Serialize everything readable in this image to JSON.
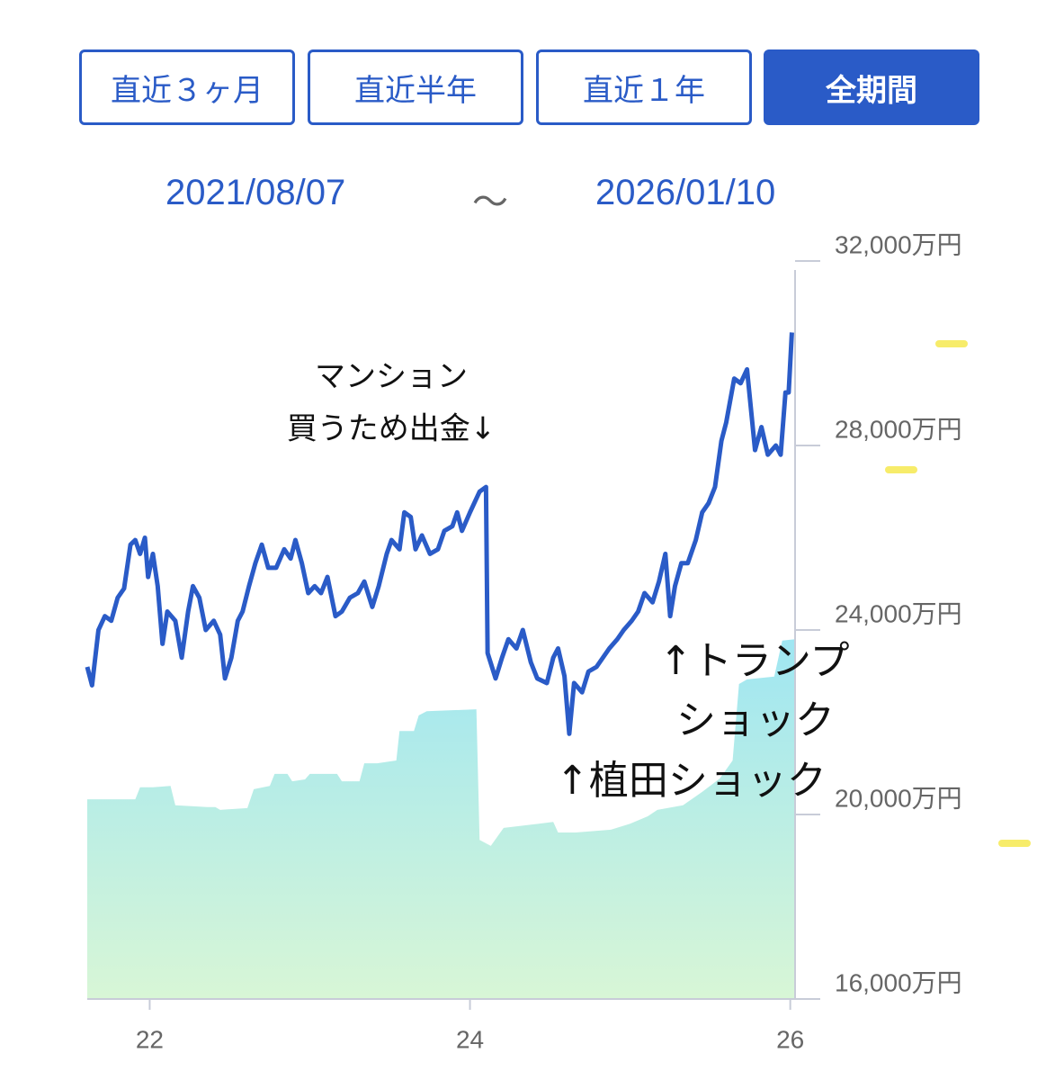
{
  "buttons": [
    "直近３ヶ月",
    "直近半年",
    "直近１年",
    "全期間"
  ],
  "active_button": 3,
  "date_range": {
    "start": "2021/08/07",
    "separator": "～",
    "end": "2026/01/10"
  },
  "chart_data": {
    "type": "line",
    "xlim": [
      21.61,
      26.03
    ],
    "xticks": [
      22,
      24,
      26
    ],
    "ylim": [
      16000,
      32000
    ],
    "yticks": [
      {
        "value": 16000,
        "label": "16,000万円"
      },
      {
        "value": 20000,
        "label": "20,000万円"
      },
      {
        "value": 24000,
        "label": "24,000万円"
      },
      {
        "value": 28000,
        "label": "28,000万円"
      },
      {
        "value": 32000,
        "label": "32,000万円"
      }
    ],
    "series": [
      {
        "type": "area",
        "color": "#a8eaf0",
        "x": [
          21.61,
          21.91,
          21.94,
          22.02,
          22.13,
          22.16,
          22.36,
          22.41,
          22.44,
          22.61,
          22.65,
          22.75,
          22.78,
          22.86,
          22.89,
          22.97,
          23.0,
          23.17,
          23.2,
          23.31,
          23.34,
          23.42,
          23.54,
          23.56,
          23.65,
          23.68,
          23.73,
          24.04,
          24.06,
          24.13,
          24.21,
          24.43,
          24.52,
          24.55,
          24.66,
          24.88,
          25.0,
          25.11,
          25.17,
          25.33,
          25.45,
          25.56,
          25.64,
          25.68,
          25.73,
          25.9,
          25.95,
          26.03
        ],
        "values": [
          20330,
          20330,
          20590,
          20590,
          20620,
          20200,
          20160,
          20160,
          20100,
          20140,
          20550,
          20620,
          20880,
          20880,
          20720,
          20760,
          20880,
          20880,
          20720,
          20720,
          21110,
          21110,
          21170,
          21810,
          21810,
          22150,
          22240,
          22280,
          19450,
          19320,
          19710,
          19800,
          19840,
          19610,
          19610,
          19670,
          19800,
          19960,
          20100,
          20200,
          20490,
          20780,
          21170,
          22830,
          22930,
          22990,
          23770,
          23800
        ]
      },
      {
        "type": "line",
        "color": "#2a5bc7",
        "x": [
          21.61,
          21.64,
          21.68,
          21.72,
          21.76,
          21.8,
          21.84,
          21.88,
          21.91,
          21.94,
          21.97,
          21.99,
          22.02,
          22.05,
          22.08,
          22.11,
          22.16,
          22.2,
          22.24,
          22.27,
          22.31,
          22.35,
          22.4,
          22.44,
          22.47,
          22.51,
          22.55,
          22.58,
          22.62,
          22.66,
          22.7,
          22.74,
          22.79,
          22.84,
          22.88,
          22.91,
          22.95,
          22.99,
          23.03,
          23.07,
          23.11,
          23.16,
          23.2,
          23.25,
          23.3,
          23.34,
          23.39,
          23.43,
          23.48,
          23.51,
          23.56,
          23.59,
          23.63,
          23.66,
          23.7,
          23.75,
          23.8,
          23.84,
          23.89,
          23.92,
          23.95,
          24.0,
          24.06,
          24.1,
          24.11,
          24.16,
          24.2,
          24.24,
          24.29,
          24.33,
          24.38,
          24.42,
          24.48,
          24.52,
          24.55,
          24.59,
          24.62,
          24.65,
          24.7,
          24.74,
          24.79,
          24.83,
          24.87,
          24.92,
          24.96,
          25.01,
          25.05,
          25.09,
          25.14,
          25.18,
          25.22,
          25.25,
          25.28,
          25.32,
          25.36,
          25.41,
          25.45,
          25.49,
          25.53,
          25.57,
          25.6,
          25.65,
          25.69,
          25.73,
          25.78,
          25.82,
          25.86,
          25.91,
          25.94,
          25.97,
          25.99,
          26.01
        ],
        "values": [
          23200,
          22800,
          24000,
          24300,
          24200,
          24700,
          24900,
          25850,
          25950,
          25650,
          26000,
          25150,
          25650,
          24950,
          23700,
          24400,
          24200,
          23400,
          24400,
          24950,
          24700,
          24000,
          24200,
          23900,
          22950,
          23400,
          24200,
          24400,
          24950,
          25450,
          25850,
          25350,
          25350,
          25750,
          25550,
          25950,
          25450,
          24800,
          24950,
          24800,
          25150,
          24300,
          24400,
          24700,
          24800,
          25050,
          24500,
          24950,
          25650,
          25950,
          25750,
          26550,
          26450,
          25750,
          26050,
          25650,
          25750,
          26150,
          26250,
          26550,
          26150,
          26550,
          27000,
          27100,
          23500,
          22950,
          23400,
          23800,
          23600,
          24000,
          23300,
          22950,
          22850,
          23400,
          23600,
          23000,
          21750,
          22850,
          22650,
          23100,
          23200,
          23400,
          23600,
          23800,
          24000,
          24200,
          24400,
          24800,
          24600,
          25050,
          25650,
          24300,
          24950,
          25450,
          25450,
          25950,
          26550,
          26750,
          27100,
          28100,
          28500,
          29450,
          29350,
          29650,
          27900,
          28400,
          27800,
          28000,
          27800,
          29150,
          29150,
          30450
        ]
      }
    ],
    "annotations": [
      "マンション",
      "買うため出金↓",
      "↑トランプ",
      "ショック",
      "↑植田ショック"
    ]
  }
}
